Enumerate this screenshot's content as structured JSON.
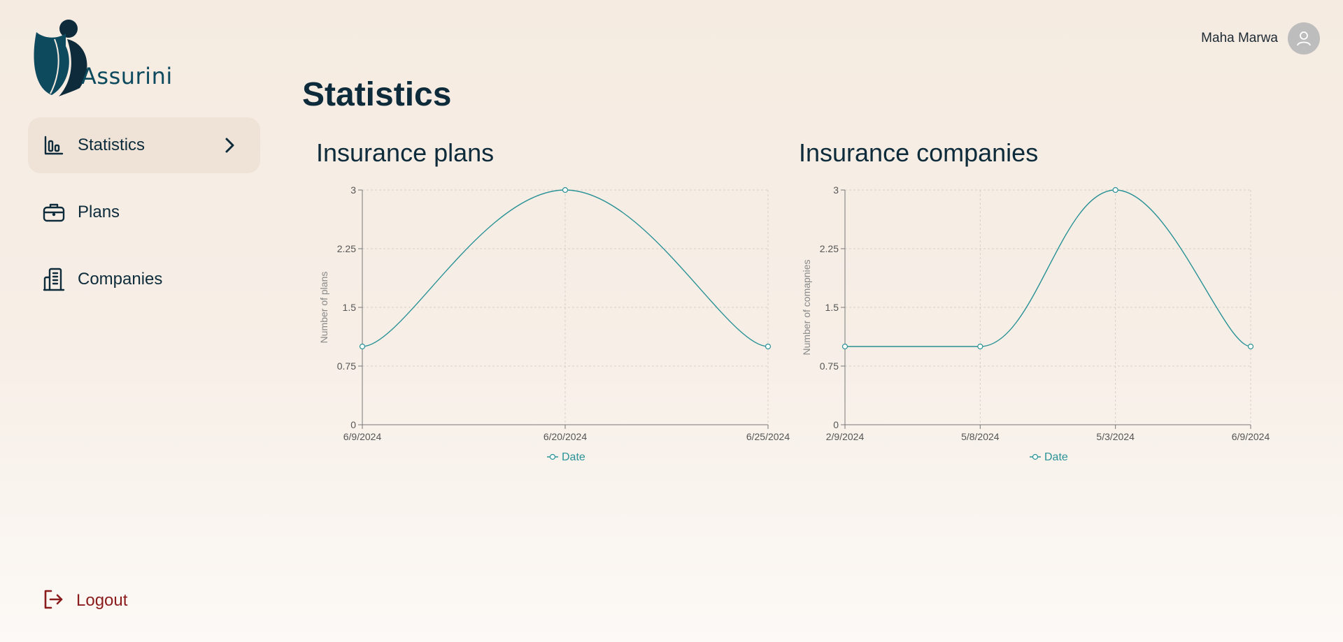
{
  "app": {
    "name": "Assurini"
  },
  "colors": {
    "accent": "#2a9296",
    "primary": "#0d2b3a",
    "logout": "#8a1c1c",
    "active_bg": "#efe3d8"
  },
  "sidebar": {
    "items": [
      {
        "label": "Statistics",
        "icon": "bar-chart-icon",
        "active": true
      },
      {
        "label": "Plans",
        "icon": "briefcase-icon",
        "active": false
      },
      {
        "label": "Companies",
        "icon": "building-icon",
        "active": false
      }
    ],
    "logout_label": "Logout"
  },
  "header": {
    "user_name": "Maha Marwa"
  },
  "main": {
    "title": "Statistics"
  },
  "chart_data": [
    {
      "type": "line",
      "title": "Insurance plans",
      "ylabel": "Number of plans",
      "x": [
        "6/9/2024",
        "6/20/2024",
        "6/25/2024"
      ],
      "series": [
        {
          "name": "Date",
          "values": [
            1,
            3,
            1
          ]
        }
      ],
      "ylim": [
        0,
        3
      ],
      "yticks": [
        "0",
        "0.75",
        "1.5",
        "2.25",
        "3"
      ],
      "grid": true,
      "legend": "bottom-center"
    },
    {
      "type": "line",
      "title": "Insurance companies",
      "ylabel": "Number of comapnies",
      "x": [
        "2/9/2024",
        "5/8/2024",
        "5/3/2024",
        "6/9/2024"
      ],
      "series": [
        {
          "name": "Date",
          "values": [
            1,
            1,
            3,
            1
          ]
        }
      ],
      "ylim": [
        0,
        3
      ],
      "yticks": [
        "0",
        "0.75",
        "1.5",
        "2.25",
        "3"
      ],
      "grid": true,
      "legend": "bottom-center"
    }
  ]
}
